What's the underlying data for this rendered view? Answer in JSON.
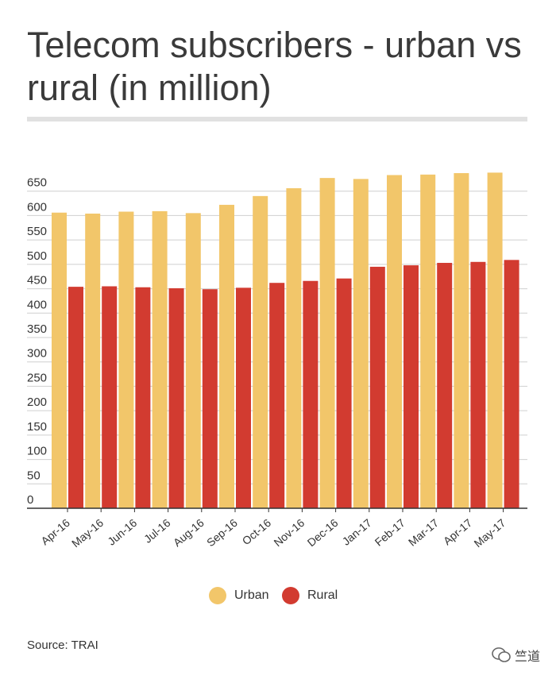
{
  "title": "Telecom subscribers - urban vs rural (in million)",
  "source": "Source: TRAI",
  "watermark": "竺道",
  "colors": {
    "urban": "#F2C66A",
    "rural": "#D23B30",
    "grid": "#cfcfcf",
    "axis": "#333333"
  },
  "chart_data": {
    "type": "bar",
    "title": "Telecom subscribers - urban vs rural (in million)",
    "categories": [
      "Apr-16",
      "May-16",
      "Jun-16",
      "Jul-16",
      "Aug-16",
      "Sep-16",
      "Oct-16",
      "Nov-16",
      "Dec-16",
      "Jan-17",
      "Feb-17",
      "Mar-17",
      "Apr-17",
      "May-17"
    ],
    "series": [
      {
        "name": "Urban",
        "values": [
          606,
          604,
          608,
          609,
          605,
          622,
          640,
          656,
          677,
          675,
          683,
          684,
          687,
          688
        ]
      },
      {
        "name": "Rural",
        "values": [
          454,
          455,
          453,
          451,
          449,
          452,
          462,
          466,
          471,
          495,
          498,
          503,
          505,
          509
        ]
      }
    ],
    "yticks": [
      0,
      50,
      100,
      150,
      200,
      250,
      300,
      350,
      400,
      450,
      500,
      550,
      600,
      650
    ],
    "ylim": [
      0,
      700
    ],
    "grid": true,
    "legend": "bottom-center"
  }
}
